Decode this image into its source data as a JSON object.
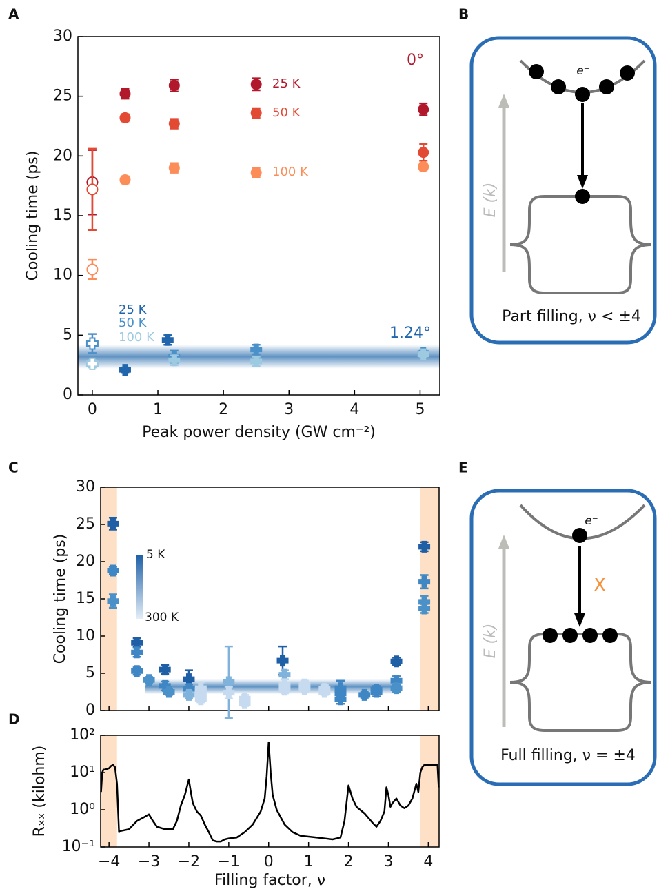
{
  "chart_data": [
    {
      "type": "scatter",
      "panel_label": "A",
      "xlabel": "Peak power density (GW cm⁻²)",
      "ylabel": "Cooling time (ps)",
      "xlim": [
        -0.22,
        5.3
      ],
      "ylim": [
        0,
        30
      ],
      "xticks": [
        0,
        1,
        2,
        3,
        4,
        5
      ],
      "yticks": [
        0,
        5,
        10,
        15,
        20,
        25,
        30
      ],
      "annotations": [
        {
          "text": "0°",
          "color": "#b2182b"
        },
        {
          "text": "1.24°",
          "color": "#2166ac"
        }
      ],
      "band": {
        "ylim": [
          2.2,
          4.2
        ],
        "color": "#2c6fb0"
      },
      "series": [
        {
          "name": "25 K",
          "color": "#b2182b",
          "marker": "circle",
          "x": [
            0,
            0.5,
            1.25,
            2.5,
            5.05
          ],
          "values": [
            17.8,
            25.2,
            25.9,
            26.0,
            23.9
          ],
          "errors": [
            2.7,
            0.4,
            0.5,
            0.5,
            0.5
          ],
          "open": [
            true,
            false,
            false,
            false,
            false
          ]
        },
        {
          "name": "50 K",
          "color": "#e34a33",
          "marker": "circle",
          "x": [
            0,
            0.5,
            1.25,
            2.5,
            5.05
          ],
          "values": [
            17.2,
            23.2,
            22.7,
            23.6,
            20.3
          ],
          "errors": [
            3.4,
            0.3,
            0.4,
            0.4,
            0.7
          ],
          "open": [
            true,
            false,
            false,
            false,
            false
          ]
        },
        {
          "name": "100 K",
          "color": "#fc8d59",
          "marker": "circle",
          "x": [
            0,
            0.5,
            1.25,
            2.5,
            5.05
          ],
          "values": [
            10.5,
            18.0,
            19.0,
            18.6,
            19.1
          ],
          "errors": [
            0.8,
            0.3,
            0.4,
            0.4,
            0.3
          ],
          "open": [
            true,
            false,
            false,
            false,
            false
          ]
        },
        {
          "name": "25 K",
          "color": "#2166ac",
          "marker": "plus",
          "x": [
            0.5,
            1.15
          ],
          "values": [
            2.1,
            4.6
          ],
          "errors": [
            0.2,
            0.4
          ],
          "open": [
            false,
            false
          ]
        },
        {
          "name": "50 K",
          "color": "#4a90c9",
          "marker": "plus",
          "x": [
            0,
            1.25,
            2.5,
            5.05
          ],
          "values": [
            4.3,
            3.2,
            3.8,
            3.5
          ],
          "errors": [
            0.8,
            0.5,
            0.4,
            0.2
          ],
          "open": [
            true,
            false,
            false,
            false
          ]
        },
        {
          "name": "100 K",
          "color": "#9ecae1",
          "marker": "plus",
          "x": [
            0,
            1.25,
            2.5,
            5.05
          ],
          "values": [
            2.6,
            2.9,
            2.8,
            3.4
          ],
          "errors": [
            0.3,
            0.4,
            0.4,
            0.2
          ],
          "open": [
            true,
            false,
            false,
            false
          ]
        }
      ]
    },
    {
      "type": "scatter",
      "panel_label": "C",
      "ylabel": "Cooling time (ps)",
      "xlim": [
        -4.21,
        4.27
      ],
      "ylim": [
        0,
        30
      ],
      "xticks": [
        -4,
        -3,
        -2,
        -1,
        0,
        1,
        2,
        3,
        4
      ],
      "yticks": [
        0,
        5,
        10,
        15,
        20,
        25,
        30
      ],
      "shaded_x": [
        [
          -4.21,
          -3.8
        ],
        [
          3.8,
          4.27
        ]
      ],
      "shade_color": "#fde0c5",
      "band": {
        "ylim": [
          2.2,
          4.2
        ],
        "xlim": [
          -3.1,
          3.3
        ],
        "color": "#2c6fb0"
      },
      "colorbar": {
        "labels": [
          "5 K",
          "300 K"
        ],
        "colors": [
          "#1f5fa6",
          "#e3eef8"
        ]
      },
      "series": [
        {
          "marker": "plus",
          "x": [
            -3.9,
            -3.9,
            -3.9,
            3.9,
            3.9,
            3.9,
            3.9,
            -3.3,
            -3.3,
            -3.3,
            -3.0,
            -2.6,
            -2.6,
            -2.5,
            -2.0,
            -2.0,
            -2.0,
            -1.7,
            -1.7,
            -1.7,
            -1.0,
            -1.0,
            -0.6,
            -0.6,
            0.35,
            0.4,
            0.4,
            0.4,
            0.9,
            0.9,
            1.4,
            1.4,
            1.8,
            1.8,
            1.8,
            2.4,
            2.7,
            2.7,
            3.2,
            3.2,
            3.2
          ],
          "values": [
            25.1,
            18.8,
            14.7,
            22.0,
            17.3,
            14.6,
            13.7,
            9.1,
            7.8,
            5.3,
            4.1,
            5.5,
            3.3,
            2.5,
            4.2,
            2.9,
            2.1,
            3.0,
            2.2,
            1.5,
            3.8,
            2.4,
            1.6,
            1.0,
            6.7,
            4.8,
            3.5,
            2.8,
            3.5,
            2.9,
            2.9,
            2.5,
            3.0,
            2.3,
            1.5,
            2.1,
            2.5,
            2.8,
            6.6,
            4.0,
            3.0
          ],
          "errors": [
            0.8,
            0.5,
            0.9,
            0.6,
            0.9,
            0.8,
            0.6,
            0.6,
            0.6,
            0.5,
            0.4,
            0.6,
            0.6,
            0.4,
            1.2,
            0.6,
            0.5,
            0.8,
            0.5,
            0.4,
            4.8,
            0.8,
            0.5,
            0.4,
            1.9,
            0.6,
            0.7,
            0.5,
            0.5,
            0.4,
            0.5,
            0.4,
            1.0,
            0.5,
            0.6,
            0.4,
            0.6,
            0.5,
            0.5,
            0.6,
            0.5
          ],
          "colors": [
            "#1f5fa6",
            "#3f86c4",
            "#4a90c9",
            "#1f5fa6",
            "#3f86c4",
            "#4a90c9",
            "#4a90c9",
            "#1f5fa6",
            "#3f86c4",
            "#3f86c4",
            "#4a90c9",
            "#1f5fa6",
            "#3f86c4",
            "#4a90c9",
            "#1f5fa6",
            "#3f86c4",
            "#7fb3dc",
            "#c6dbef",
            "#c6dbef",
            "#c6dbef",
            "#7fb3dc",
            "#c6dbef",
            "#c6dbef",
            "#c6dbef",
            "#1f5fa6",
            "#7fb3dc",
            "#c6dbef",
            "#c6dbef",
            "#c6dbef",
            "#c6dbef",
            "#c6dbef",
            "#c6dbef",
            "#3f86c4",
            "#3f86c4",
            "#3f86c4",
            "#3f86c4",
            "#3f86c4",
            "#3f86c4",
            "#1f5fa6",
            "#3f86c4",
            "#4a90c9"
          ]
        }
      ]
    },
    {
      "type": "line",
      "panel_label": "D",
      "xlabel": "Filling factor, ν",
      "ylabel": "Rₓₓ (kilohm)",
      "log_y": true,
      "color": "#000000",
      "xlim": [
        -4.21,
        4.27
      ],
      "ylim": [
        0.1,
        100
      ],
      "xticks": [
        {
          "value": -4,
          "label": "−4"
        },
        {
          "value": -3,
          "label": "−3"
        },
        {
          "value": -2,
          "label": "−2"
        },
        {
          "value": -1,
          "label": "−1"
        },
        0,
        1,
        2,
        3,
        4
      ],
      "yticks": [
        {
          "value": 0.1,
          "label": "10⁻¹"
        },
        {
          "value": 1,
          "label": "10⁰"
        },
        {
          "value": 10,
          "label": "10¹"
        },
        {
          "value": 100,
          "label": "10²"
        }
      ],
      "shaded_x": [
        [
          -4.21,
          -3.8
        ],
        [
          3.8,
          4.27
        ]
      ],
      "shade_color": "#fde0c5",
      "x": [
        -4.2,
        -4.17,
        -4.14,
        -4.1,
        -4.0,
        -3.95,
        -3.9,
        -3.85,
        -3.8,
        -3.75,
        -3.7,
        -3.5,
        -3.3,
        -3.1,
        -3.0,
        -2.9,
        -2.8,
        -2.6,
        -2.4,
        -2.3,
        -2.2,
        -2.1,
        -2.0,
        -1.95,
        -1.9,
        -1.8,
        -1.7,
        -1.6,
        -1.5,
        -1.4,
        -1.3,
        -1.2,
        -1.1,
        -1.0,
        -0.8,
        -0.6,
        -0.4,
        -0.2,
        -0.1,
        -0.05,
        0,
        0.05,
        0.1,
        0.2,
        0.4,
        0.6,
        0.8,
        1.0,
        1.2,
        1.4,
        1.6,
        1.8,
        1.9,
        2.0,
        2.1,
        2.2,
        2.4,
        2.6,
        2.7,
        2.8,
        2.9,
        2.95,
        3.0,
        3.05,
        3.1,
        3.2,
        3.3,
        3.4,
        3.5,
        3.6,
        3.7,
        3.75,
        3.8,
        3.85,
        3.9,
        4.0,
        4.1,
        4.18,
        4.23,
        4.26
      ],
      "values": [
        3,
        10,
        12,
        12,
        13,
        15,
        16,
        14,
        5,
        0.25,
        0.27,
        0.3,
        0.5,
        0.65,
        0.75,
        0.5,
        0.35,
        0.3,
        0.3,
        0.5,
        1.3,
        2.5,
        6.5,
        3,
        1.5,
        0.9,
        0.7,
        0.4,
        0.25,
        0.15,
        0.14,
        0.14,
        0.16,
        0.17,
        0.18,
        0.25,
        0.4,
        0.9,
        2,
        8,
        65,
        10,
        2.5,
        1,
        0.4,
        0.25,
        0.2,
        0.19,
        0.18,
        0.17,
        0.16,
        0.18,
        0.5,
        4.5,
        2,
        1.2,
        0.8,
        0.45,
        0.35,
        0.5,
        0.9,
        4,
        2.5,
        1.2,
        1.5,
        2,
        1.3,
        1.1,
        1.3,
        2,
        5,
        3,
        10,
        14,
        16,
        16,
        16,
        16,
        16,
        4
      ]
    }
  ],
  "diagrams": [
    {
      "label": "B",
      "energy_label": "E (k)",
      "electron_label": "e⁻",
      "caption": "Part filling, ν < ±4"
    },
    {
      "label": "E",
      "energy_label": "E (k)",
      "electron_label": "e⁻",
      "blocked_label": "X",
      "caption": "Full filling, ν = ±4"
    }
  ]
}
